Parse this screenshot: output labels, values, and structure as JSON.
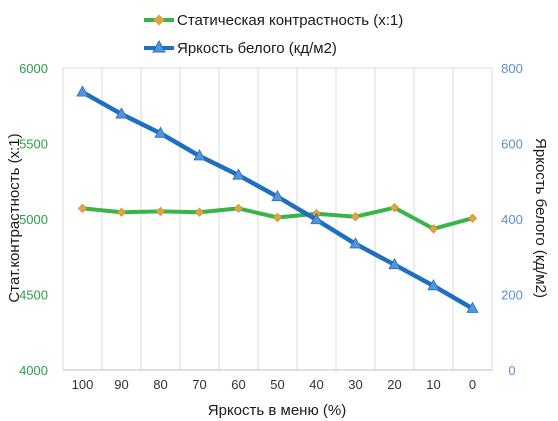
{
  "chart_data": {
    "type": "line",
    "xlabel": "Яркость в меню (%)",
    "ylabel_left": "Стат.контрастность  (x:1)",
    "ylabel_right": "Яркость белого (кд/м2)",
    "categories": [
      100,
      90,
      80,
      70,
      60,
      50,
      40,
      30,
      20,
      10,
      0
    ],
    "y_left_ticks": [
      4000,
      4500,
      5000,
      5500,
      6000
    ],
    "y_right_ticks": [
      0,
      200,
      400,
      600,
      800
    ],
    "ylim_left": [
      4000,
      6000
    ],
    "ylim_right": [
      0,
      800
    ],
    "grid": "vertical",
    "legend_position": "top",
    "series": [
      {
        "name": "Статическая контрастность (x:1)",
        "axis": "left",
        "color": "#38b449",
        "marker": "diamond",
        "marker_color": "#e0a441",
        "values": [
          5070,
          5045,
          5050,
          5045,
          5070,
          5010,
          5035,
          5015,
          5075,
          4935,
          5005
        ]
      },
      {
        "name": "Яркость белого (кд/м2)",
        "axis": "right",
        "color": "#1e6fc2",
        "marker": "triangle",
        "marker_color": "#4f97d8",
        "values": [
          736,
          678,
          627,
          567,
          516,
          459,
          398,
          334,
          279,
          223,
          163
        ]
      }
    ]
  }
}
